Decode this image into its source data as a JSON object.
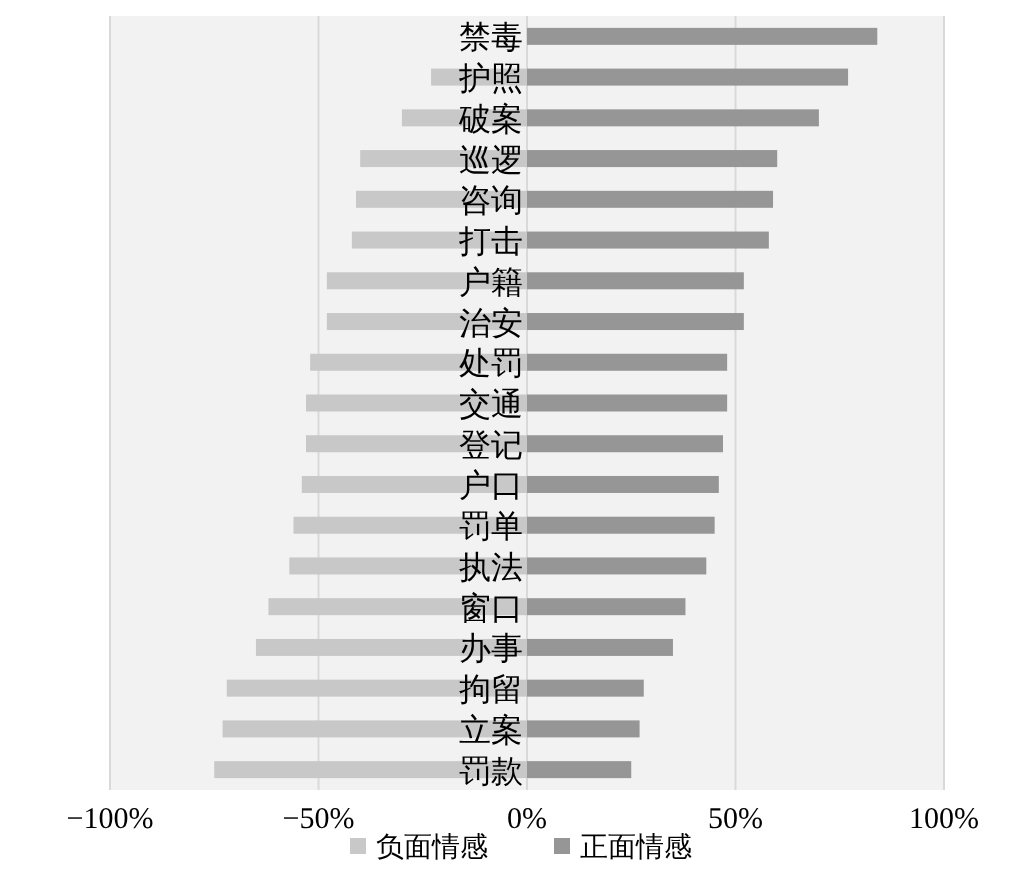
{
  "chart_data": {
    "type": "bar",
    "orientation": "horizontal",
    "stacked": true,
    "categories": [
      "禁毒",
      "护照",
      "破案",
      "巡逻",
      "咨询",
      "打击",
      "户籍",
      "治安",
      "处罚",
      "交通",
      "登记",
      "户口",
      "罚单",
      "执法",
      "窗口",
      "办事",
      "拘留",
      "立案",
      "罚款"
    ],
    "series": [
      {
        "name": "负面情感",
        "color": "#c8c8c8",
        "values": [
          null,
          -23,
          -30,
          -40,
          -41,
          -42,
          -48,
          -48,
          -52,
          -53,
          -53,
          -54,
          -56,
          -57,
          -62,
          -65,
          -72,
          -73,
          -75
        ]
      },
      {
        "name": "正面情感",
        "color": "#969696",
        "values": [
          84,
          77,
          70,
          60,
          59,
          58,
          52,
          52,
          48,
          48,
          47,
          46,
          45,
          43,
          38,
          35,
          28,
          27,
          25
        ]
      }
    ],
    "xlim": [
      -100,
      100
    ],
    "xticks": [
      {
        "value": -100,
        "label": "−100%"
      },
      {
        "value": -50,
        "label": "−50%"
      },
      {
        "value": 0,
        "label": "0%"
      },
      {
        "value": 50,
        "label": "50%"
      },
      {
        "value": 100,
        "label": "100%"
      }
    ],
    "grid": "x",
    "legend": "bottom"
  }
}
